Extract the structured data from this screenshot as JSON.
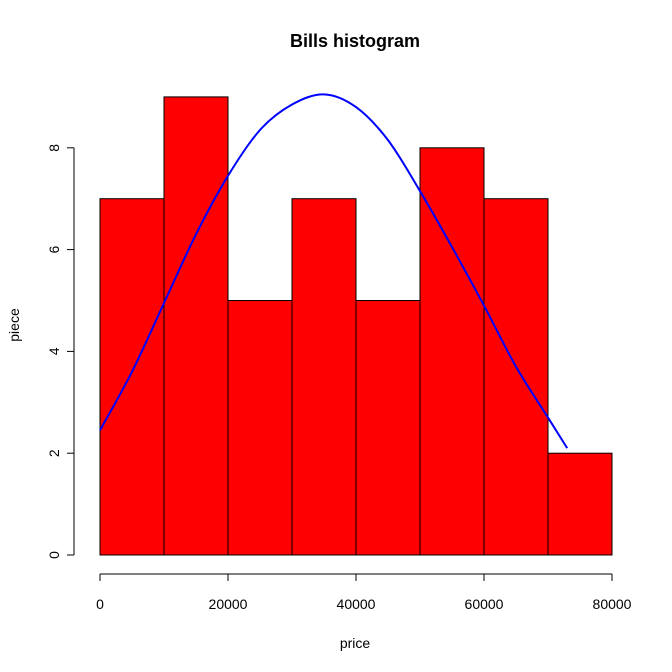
{
  "chart_data": {
    "type": "bar",
    "title": "Bills histogram",
    "xlabel": "price",
    "ylabel": "piece",
    "bins": [
      {
        "start": 0,
        "end": 10000,
        "count": 7
      },
      {
        "start": 10000,
        "end": 20000,
        "count": 9
      },
      {
        "start": 20000,
        "end": 30000,
        "count": 5
      },
      {
        "start": 30000,
        "end": 40000,
        "count": 7
      },
      {
        "start": 40000,
        "end": 50000,
        "count": 5
      },
      {
        "start": 50000,
        "end": 60000,
        "count": 8
      },
      {
        "start": 60000,
        "end": 70000,
        "count": 7
      },
      {
        "start": 70000,
        "end": 80000,
        "count": 2
      }
    ],
    "xlim": [
      0,
      80000
    ],
    "ylim": [
      0,
      9
    ],
    "xticks": [
      0,
      20000,
      40000,
      60000,
      80000
    ],
    "yticks": [
      0,
      2,
      4,
      6,
      8
    ],
    "bar_color": "#ff0000",
    "bar_border": "#000000",
    "density_curve": {
      "color": "#0000ff",
      "x": [
        0,
        5000,
        10000,
        15000,
        20000,
        25000,
        30000,
        35000,
        40000,
        45000,
        50000,
        55000,
        60000,
        65000,
        70000,
        73000
      ],
      "y": [
        2.45,
        3.6,
        4.95,
        6.3,
        7.45,
        8.35,
        8.85,
        9.05,
        8.8,
        8.15,
        7.15,
        6.05,
        4.9,
        3.7,
        2.7,
        2.1
      ]
    },
    "grid": false,
    "legend": false
  }
}
